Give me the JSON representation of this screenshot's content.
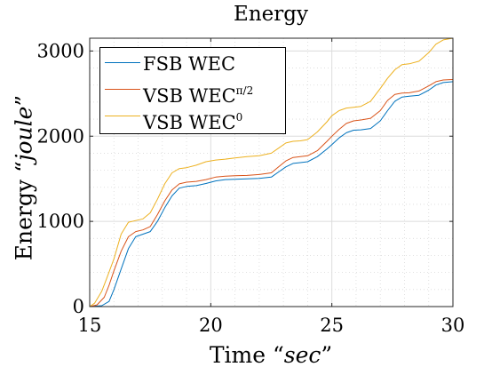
{
  "chart_data": {
    "type": "line",
    "title": "Energy",
    "xlabel": {
      "prefix": "Time “",
      "var": "sec",
      "suffix": "”"
    },
    "ylabel": {
      "prefix": "Energy “",
      "var": "joule",
      "suffix": "”"
    },
    "xlim": [
      15,
      30
    ],
    "ylim": [
      0,
      3150
    ],
    "xticks": [
      15,
      20,
      25,
      30
    ],
    "yticks": [
      0,
      1000,
      2000,
      3000
    ],
    "grid": true,
    "minor_grid": true,
    "legend_position": "top-left",
    "series": [
      {
        "name": "FSB WEC",
        "name_sup": "",
        "color": "#0072BD",
        "x": [
          15,
          15.5,
          15.8,
          16.0,
          16.3,
          16.6,
          16.9,
          17.2,
          17.5,
          17.8,
          18.1,
          18.4,
          18.7,
          19.0,
          19.4,
          19.8,
          20.2,
          20.6,
          21.0,
          21.5,
          22.0,
          22.5,
          22.8,
          23.1,
          23.4,
          23.7,
          24.0,
          24.4,
          24.8,
          25.0,
          25.3,
          25.6,
          25.9,
          26.2,
          26.6,
          27.0,
          27.3,
          27.6,
          27.9,
          28.2,
          28.6,
          29.0,
          29.3,
          29.6,
          30.0
        ],
        "y": [
          0,
          10,
          60,
          200,
          440,
          680,
          820,
          850,
          880,
          1000,
          1160,
          1300,
          1390,
          1410,
          1420,
          1445,
          1475,
          1490,
          1495,
          1500,
          1505,
          1520,
          1580,
          1640,
          1680,
          1690,
          1700,
          1760,
          1850,
          1900,
          1980,
          2040,
          2070,
          2075,
          2090,
          2180,
          2300,
          2410,
          2460,
          2470,
          2480,
          2540,
          2600,
          2630,
          2640
        ]
      },
      {
        "name": "VSB WEC",
        "name_sup": "π/2",
        "color": "#D95319",
        "x": [
          15,
          15.3,
          15.6,
          15.8,
          16.0,
          16.3,
          16.6,
          16.9,
          17.2,
          17.5,
          17.8,
          18.1,
          18.4,
          18.7,
          19.0,
          19.4,
          19.8,
          20.2,
          20.6,
          21.0,
          21.5,
          22.0,
          22.5,
          22.8,
          23.1,
          23.4,
          23.7,
          24.0,
          24.4,
          24.8,
          25.0,
          25.3,
          25.6,
          25.9,
          26.2,
          26.6,
          27.0,
          27.3,
          27.6,
          27.9,
          28.2,
          28.6,
          29.0,
          29.3,
          29.6,
          30.0
        ],
        "y": [
          0,
          20,
          110,
          250,
          420,
          650,
          820,
          880,
          900,
          940,
          1080,
          1240,
          1370,
          1440,
          1460,
          1470,
          1490,
          1520,
          1530,
          1535,
          1540,
          1550,
          1570,
          1640,
          1710,
          1750,
          1760,
          1770,
          1830,
          1940,
          2000,
          2080,
          2150,
          2180,
          2190,
          2210,
          2300,
          2420,
          2490,
          2505,
          2510,
          2530,
          2590,
          2640,
          2660,
          2665
        ]
      },
      {
        "name": "VSB WEC",
        "name_sup": "0",
        "color": "#EDB120",
        "x": [
          15,
          15.2,
          15.5,
          15.7,
          16.0,
          16.3,
          16.6,
          16.9,
          17.2,
          17.5,
          17.8,
          18.1,
          18.4,
          18.7,
          19.0,
          19.4,
          19.8,
          20.2,
          20.6,
          21.0,
          21.5,
          22.0,
          22.5,
          22.8,
          23.1,
          23.4,
          23.7,
          24.0,
          24.4,
          24.8,
          25.0,
          25.3,
          25.6,
          25.9,
          26.2,
          26.6,
          27.0,
          27.3,
          27.6,
          27.9,
          28.2,
          28.6,
          29.0,
          29.3,
          29.6,
          30.0
        ],
        "y": [
          0,
          40,
          180,
          330,
          560,
          850,
          990,
          1010,
          1030,
          1100,
          1260,
          1440,
          1570,
          1620,
          1630,
          1660,
          1700,
          1720,
          1730,
          1745,
          1760,
          1770,
          1800,
          1860,
          1920,
          1940,
          1945,
          1960,
          2050,
          2170,
          2240,
          2300,
          2330,
          2340,
          2350,
          2410,
          2560,
          2680,
          2780,
          2840,
          2850,
          2880,
          2980,
          3080,
          3130,
          3150
        ]
      }
    ]
  }
}
